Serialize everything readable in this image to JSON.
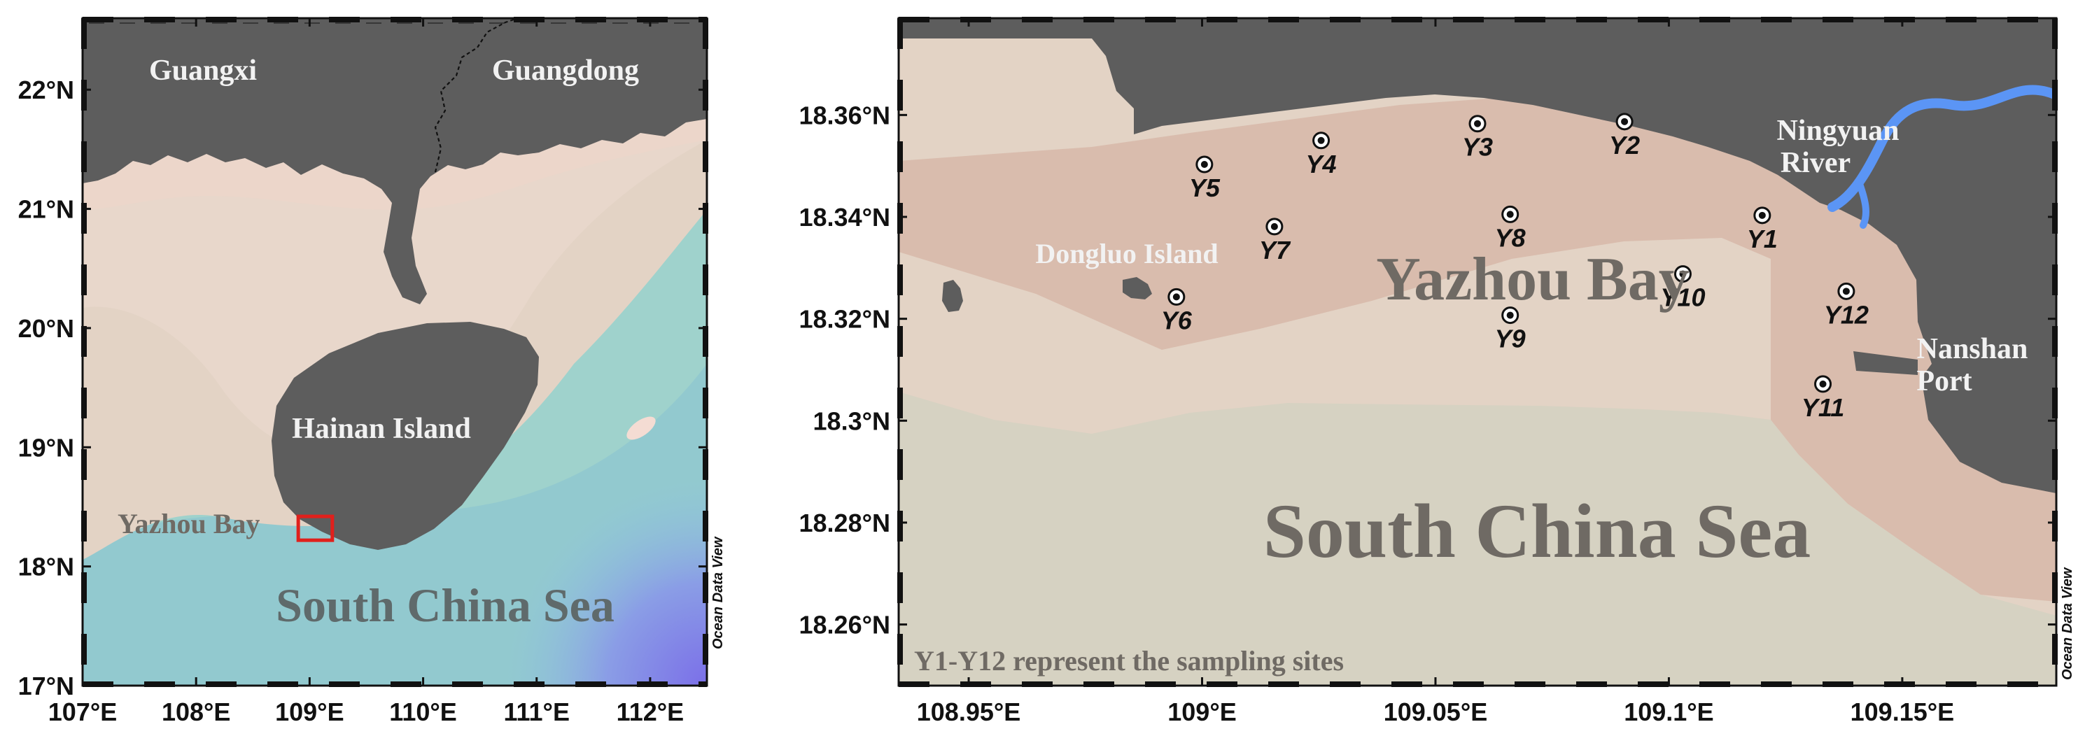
{
  "left_map": {
    "lon_range": [
      107,
      112.5
    ],
    "lat_range": [
      17,
      22.6
    ],
    "lon_ticks": [
      "107°E",
      "108°E",
      "109°E",
      "110°E",
      "111°E",
      "112°E"
    ],
    "lat_ticks": [
      "17°N",
      "18°N",
      "19°N",
      "20°N",
      "21°N",
      "22°N"
    ],
    "labels": {
      "guangxi": "Guangxi",
      "guangdong": "Guangdong",
      "hainan": "Hainan Island",
      "yazhou": "Yazhou Bay",
      "sea": "South China Sea"
    },
    "credit": "Ocean Data View",
    "highlight_box": {
      "lon": [
        108.9,
        109.2
      ],
      "lat": [
        18.22,
        18.42
      ],
      "color": "#e0201c"
    }
  },
  "right_map": {
    "lon_range": [
      108.935,
      109.183
    ],
    "lat_range": [
      18.248,
      18.379
    ],
    "lon_ticks": [
      "108.95°E",
      "109°E",
      "109.05°E",
      "109.1°E",
      "109.15°E"
    ],
    "lat_ticks": [
      "18.26°N",
      "18.28°N",
      "18.3°N",
      "18.32°N",
      "18.34°N",
      "18.36°N"
    ],
    "labels": {
      "dongluo": "Dongluo Island",
      "yazhou": "Yazhou Bay",
      "ningyuan_1": "Ningyuan",
      "ningyuan_2": "River",
      "nanshan_1": "Nanshan",
      "nanshan_2": "Port",
      "sea": "South China Sea",
      "note": "Y1-Y12 represent the sampling sites"
    },
    "credit": "Ocean Data View",
    "sites": [
      {
        "name": "Y1",
        "lon": 109.12,
        "lat": 18.3403
      },
      {
        "name": "Y2",
        "lon": 109.0905,
        "lat": 18.3587
      },
      {
        "name": "Y3",
        "lon": 109.059,
        "lat": 18.3583
      },
      {
        "name": "Y4",
        "lon": 109.0255,
        "lat": 18.355
      },
      {
        "name": "Y5",
        "lon": 109.0005,
        "lat": 18.3503
      },
      {
        "name": "Y6",
        "lon": 108.9945,
        "lat": 18.3243
      },
      {
        "name": "Y7",
        "lon": 109.0155,
        "lat": 18.3381
      },
      {
        "name": "Y8",
        "lon": 109.066,
        "lat": 18.3405
      },
      {
        "name": "Y9",
        "lon": 109.066,
        "lat": 18.3207
      },
      {
        "name": "Y10",
        "lon": 109.103,
        "lat": 18.3288
      },
      {
        "name": "Y11",
        "lon": 109.133,
        "lat": 18.3072
      },
      {
        "name": "Y12",
        "lon": 109.138,
        "lat": 18.3254
      }
    ]
  },
  "colors": {
    "land": "#5d5d5d",
    "coast_tint": "#e9d0c3",
    "bay_tint": "#d9bcad",
    "shelf": "#e3d3c5",
    "sea_light": "#d6d2c2",
    "sea_teal": "#9fd2cc",
    "sea_blue": "#7fb0e0",
    "deep_purple": "#8a8fe8",
    "river": "#5b95f5",
    "label_white": "#f2f2f2",
    "label_grey": "#6f6a64"
  }
}
